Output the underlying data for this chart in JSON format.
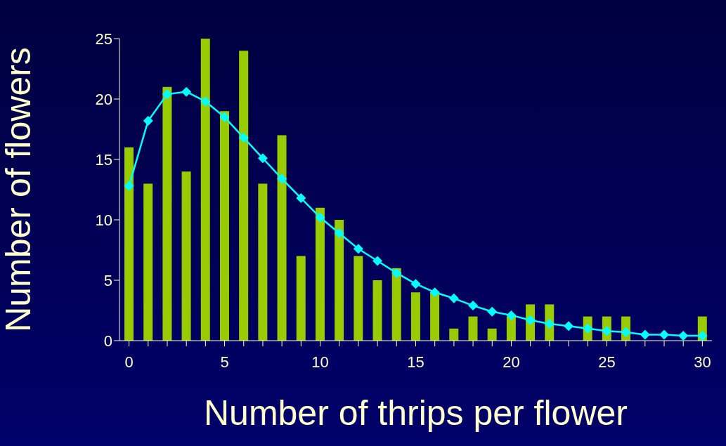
{
  "chart_data": {
    "type": "bar",
    "xlabel": "Number of thrips per flower",
    "ylabel": "Number of flowers",
    "x": [
      0,
      1,
      2,
      3,
      4,
      5,
      6,
      7,
      8,
      9,
      10,
      11,
      12,
      13,
      14,
      15,
      16,
      17,
      18,
      19,
      20,
      21,
      22,
      23,
      24,
      25,
      26,
      27,
      28,
      29,
      30
    ],
    "xlim": [
      -0.5,
      30.5
    ],
    "xticks": [
      0,
      {
        "value": 1,
        "label": null
      },
      {
        "value": 2,
        "label": null
      },
      {
        "value": 3,
        "label": null
      },
      {
        "value": 4,
        "label": null
      },
      5,
      {
        "value": 6,
        "label": null
      },
      {
        "value": 7,
        "label": null
      },
      {
        "value": 8,
        "label": null
      },
      {
        "value": 9,
        "label": null
      },
      10,
      {
        "value": 11,
        "label": null
      },
      {
        "value": 12,
        "label": null
      },
      {
        "value": 13,
        "label": null
      },
      {
        "value": 14,
        "label": null
      },
      15,
      {
        "value": 16,
        "label": null
      },
      {
        "value": 17,
        "label": null
      },
      {
        "value": 18,
        "label": null
      },
      {
        "value": 19,
        "label": null
      },
      20,
      {
        "value": 21,
        "label": null
      },
      {
        "value": 22,
        "label": null
      },
      {
        "value": 23,
        "label": null
      },
      {
        "value": 24,
        "label": null
      },
      25,
      {
        "value": 26,
        "label": null
      },
      {
        "value": 27,
        "label": null
      },
      {
        "value": 28,
        "label": null
      },
      {
        "value": 29,
        "label": null
      },
      30
    ],
    "ylim": [
      0,
      25
    ],
    "yticks": [
      0,
      5,
      10,
      15,
      20,
      25
    ],
    "series": [
      {
        "color": "#99cc00",
        "values": [
          16,
          13,
          21,
          14,
          25,
          19,
          24,
          13,
          17,
          7,
          11,
          10,
          7,
          5,
          6,
          4,
          4,
          1,
          2,
          1,
          2,
          3,
          3,
          0,
          2,
          2,
          2,
          0,
          0,
          0,
          2
        ]
      },
      {
        "type": "line",
        "color": "#00ffff",
        "marker": "diamond",
        "values": [
          12.8,
          18.2,
          20.4,
          20.6,
          19.8,
          18.5,
          16.8,
          15.1,
          13.4,
          11.8,
          10.2,
          8.9,
          7.6,
          6.6,
          5.6,
          4.7,
          4.0,
          3.5,
          2.9,
          2.4,
          2.1,
          1.7,
          1.4,
          1.2,
          1.0,
          0.8,
          0.7,
          0.5,
          0.5,
          0.4,
          0.4
        ]
      }
    ]
  }
}
